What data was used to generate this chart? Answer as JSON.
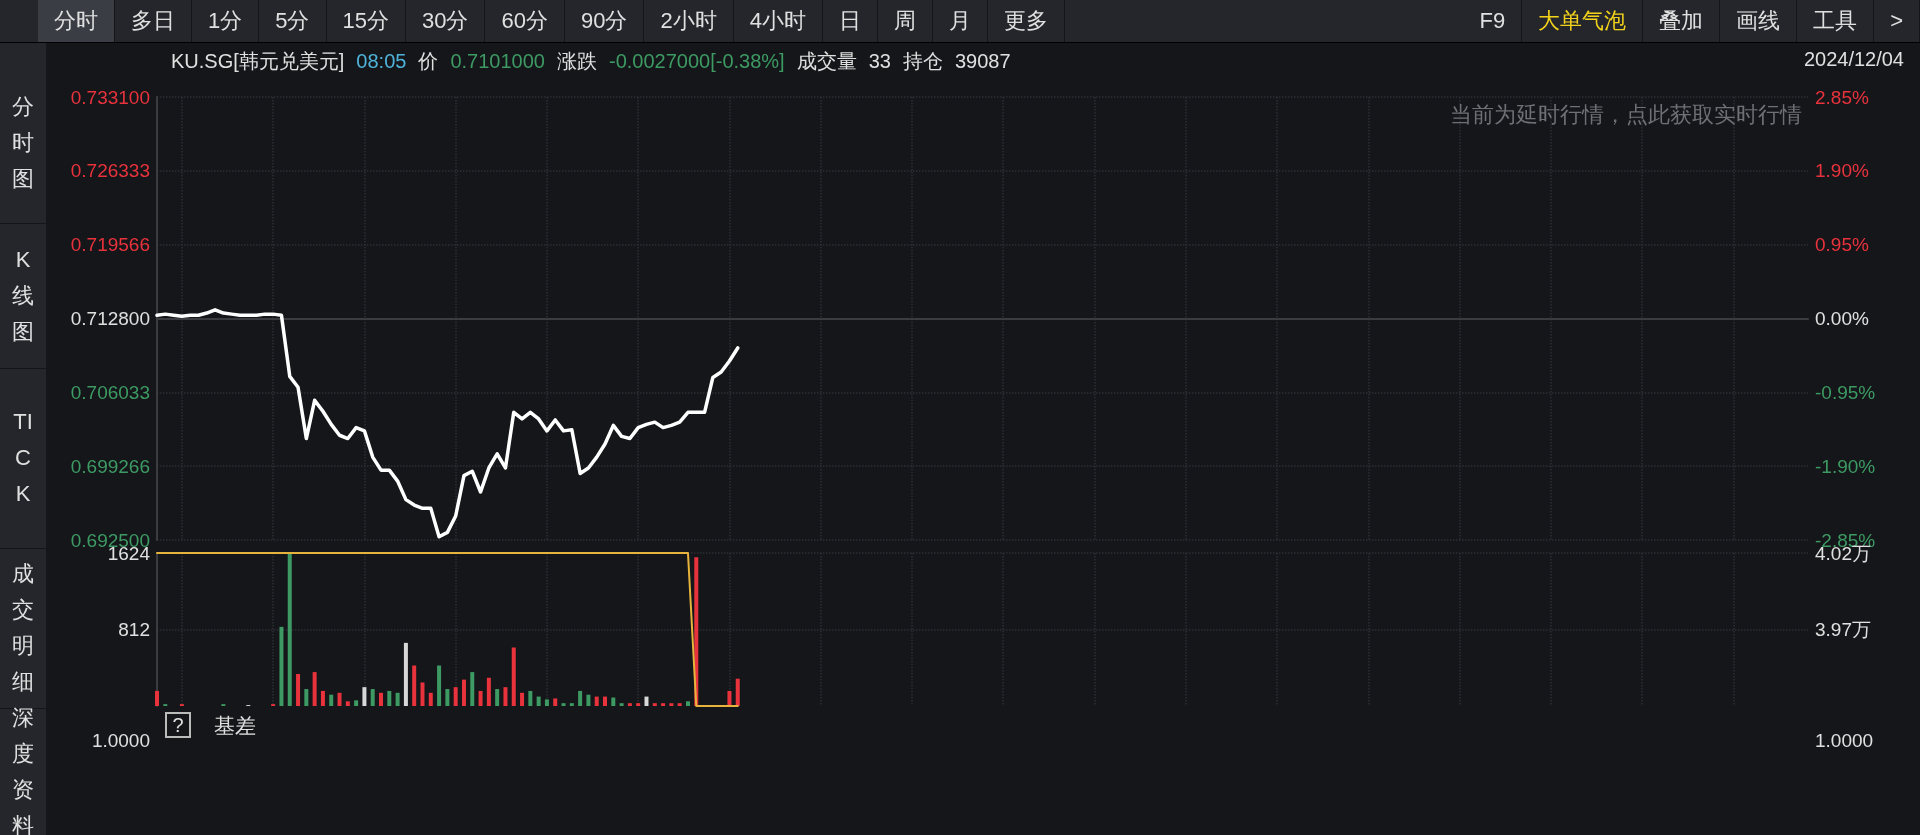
{
  "chart_data": [
    {
      "type": "line",
      "categories": [
        null,
        null,
        null,
        null,
        null,
        null,
        null,
        null,
        null,
        null,
        null,
        null,
        null,
        null,
        null,
        null,
        null,
        null,
        null,
        null,
        null,
        null,
        null,
        null,
        null,
        null,
        null,
        null,
        null,
        null,
        null,
        null,
        null,
        null,
        null,
        null,
        null,
        null,
        null,
        null,
        null,
        null,
        null,
        null,
        null,
        null,
        null,
        null,
        null,
        null,
        null,
        null,
        null,
        null,
        null,
        null,
        null,
        null,
        null,
        null,
        null,
        null,
        null,
        null,
        null,
        null,
        null,
        null,
        null,
        null,
        null,
        null,
        null,
        null,
        null,
        null,
        null,
        null,
        null,
        null,
        null,
        null,
        null,
        null,
        null,
        null,
        null,
        null,
        null,
        null,
        null,
        null,
        null,
        null,
        null,
        null,
        null,
        null,
        null,
        null,
        null,
        null,
        null,
        null,
        null,
        null,
        null,
        null,
        null,
        null,
        null,
        null,
        null,
        null,
        null,
        null,
        null,
        null,
        null,
        null,
        null,
        null,
        null,
        null,
        null,
        null,
        null,
        null,
        null,
        null,
        null,
        null,
        null,
        null,
        null,
        null,
        null,
        null,
        null,
        null,
        null,
        null,
        null,
        null,
        null,
        null,
        null,
        null,
        null,
        null,
        null,
        null,
        null,
        null,
        null,
        null,
        null,
        null,
        null,
        null,
        null,
        null,
        null,
        null,
        null,
        null,
        null,
        null,
        null,
        null,
        null,
        null,
        null,
        null,
        null,
        null,
        null,
        null,
        null,
        null,
        null,
        null,
        null,
        null,
        null,
        null,
        null,
        null,
        null,
        null,
        null,
        null,
        null,
        null,
        null,
        null,
        null,
        null,
        null,
        null
      ],
      "series": [
        {
          "color": "#ffffff",
          "values": [
            0.7131,
            0.7132,
            0.7131,
            0.713,
            0.7131,
            0.7131,
            0.7133,
            0.7136,
            0.7133,
            0.7132,
            0.7131,
            0.7131,
            0.7131,
            0.7132,
            0.7132,
            0.7131,
            0.7075,
            0.7065,
            0.7018,
            0.7053,
            0.7043,
            0.7031,
            0.7021,
            0.7018,
            0.7028,
            0.7025,
            0.7001,
            0.6989,
            0.6989,
            0.6979,
            0.6962,
            0.6957,
            0.6954,
            0.6954,
            0.6928,
            0.6932,
            0.6947,
            0.6984,
            0.6988,
            0.6969,
            0.6991,
            0.7004,
            0.6991,
            0.7042,
            0.7036,
            0.7042,
            0.7036,
            0.7025,
            0.7035,
            0.7025,
            0.7026,
            0.6986,
            0.6991,
            0.7001,
            0.7013,
            0.703,
            0.702,
            0.7018,
            0.7028,
            0.7031,
            0.7033,
            0.7028,
            0.703,
            0.7033,
            0.7042,
            0.7042,
            0.7042,
            0.7074,
            0.7079,
            0.7089,
            0.7101,
            null,
            null,
            null,
            null,
            null,
            null,
            null,
            null,
            null,
            null,
            null,
            null,
            null,
            null,
            null,
            null,
            null,
            null,
            null,
            null,
            null,
            null,
            null,
            null,
            null,
            null,
            null,
            null,
            null,
            null,
            null,
            null,
            null,
            null,
            null,
            null,
            null,
            null,
            null,
            null,
            null,
            null,
            null,
            null,
            null,
            null,
            null,
            null,
            null,
            null,
            null,
            null,
            null,
            null,
            null,
            null,
            null,
            null,
            null,
            null,
            null,
            null,
            null,
            null,
            null,
            null,
            null,
            null,
            null,
            null,
            null,
            null,
            null,
            null,
            null,
            null,
            null,
            null,
            null,
            null,
            null,
            null,
            null,
            null,
            null,
            null,
            null,
            null,
            null,
            null,
            null,
            null,
            null,
            null,
            null,
            null,
            null,
            null,
            null,
            null,
            null,
            null,
            null,
            null,
            null,
            null,
            null,
            null,
            null,
            null,
            null,
            null,
            null,
            null,
            null,
            null,
            null,
            null,
            null,
            null,
            null,
            null,
            null,
            null,
            null,
            null,
            null,
            null,
            null
          ]
        }
      ],
      "ylim": [
        0.6925,
        0.7331
      ],
      "yticks": [
        {
          "value": 0.6925,
          "label": "0.692500"
        },
        {
          "value": 0.699266,
          "label": "0.699266"
        },
        {
          "value": 0.706033,
          "label": "0.706033"
        },
        {
          "value": 0.7128,
          "label": "0.712800"
        },
        {
          "value": 0.719566,
          "label": "0.719566"
        },
        {
          "value": 0.726333,
          "label": "0.726333"
        },
        {
          "value": 0.7331,
          "label": "0.733100"
        }
      ],
      "y2lim": [
        -2.85,
        2.85
      ],
      "y2ticks": [
        {
          "value": -2.85,
          "label": "-2.85%"
        },
        {
          "value": -1.9,
          "label": "-1.90%"
        },
        {
          "value": -0.95,
          "label": "-0.95%"
        },
        {
          "value": 0,
          "label": "0.00%"
        },
        {
          "value": 0.95,
          "label": "0.95%"
        },
        {
          "value": 1.9,
          "label": "1.90%"
        },
        {
          "value": 2.85,
          "label": "2.85%"
        }
      ],
      "ref_lines": [
        {
          "axis": "y",
          "value": 0.7128,
          "label": null,
          "color": "#3a3c40"
        }
      ],
      "grid": true,
      "line_style": "solid",
      "annotations": [
        "KU.SG[韩元兑美元]",
        "08:05",
        "价",
        "0.7101000",
        "涨跌",
        "-0.0027000[-0.38%]",
        "成交量",
        "33",
        "持仓",
        "39087",
        "2024/12/04",
        "当前为延时行情，点此获取实时行情"
      ]
    },
    {
      "type": "bar",
      "categories": [
        null,
        null,
        null,
        null,
        null,
        null,
        null,
        null,
        null,
        null,
        null,
        null,
        null,
        null,
        null,
        null,
        null,
        null,
        null,
        null,
        null,
        null,
        null,
        null,
        null,
        null,
        null,
        null,
        null,
        null,
        null,
        null,
        null,
        null,
        null,
        null,
        null,
        null,
        null,
        null,
        null,
        null,
        null,
        null,
        null,
        null,
        null,
        null,
        null,
        null,
        null,
        null,
        null,
        null,
        null,
        null,
        null,
        null,
        null,
        null,
        null,
        null,
        null,
        null,
        null,
        null,
        null,
        null,
        null,
        null,
        null,
        null,
        null,
        null,
        null,
        null,
        null,
        null,
        null,
        null,
        null,
        null,
        null,
        null,
        null,
        null,
        null,
        null,
        null,
        null,
        null,
        null,
        null,
        null,
        null,
        null,
        null,
        null,
        null,
        null,
        null,
        null,
        null,
        null,
        null,
        null,
        null,
        null,
        null,
        null,
        null,
        null,
        null,
        null,
        null,
        null,
        null,
        null,
        null,
        null,
        null,
        null,
        null,
        null,
        null,
        null,
        null,
        null,
        null,
        null,
        null,
        null,
        null,
        null,
        null,
        null,
        null,
        null,
        null,
        null,
        null,
        null,
        null,
        null,
        null,
        null,
        null,
        null,
        null,
        null,
        null,
        null,
        null,
        null,
        null,
        null,
        null,
        null,
        null,
        null,
        null,
        null,
        null,
        null,
        null,
        null,
        null,
        null,
        null,
        null,
        null,
        null,
        null,
        null,
        null,
        null,
        null,
        null,
        null,
        null,
        null,
        null,
        null,
        null,
        null,
        null,
        null,
        null,
        null,
        null,
        null,
        null,
        null,
        null,
        null,
        null,
        null,
        null,
        null,
        null
      ],
      "series": [
        {
          "type": "bar",
          "values": [
            160,
            20,
            0,
            20,
            0,
            0,
            0,
            0,
            20,
            0,
            0,
            10,
            0,
            0,
            20,
            840,
            1624,
            340,
            180,
            360,
            160,
            120,
            140,
            50,
            60,
            200,
            180,
            140,
            160,
            140,
            670,
            430,
            250,
            140,
            430,
            180,
            200,
            280,
            360,
            160,
            300,
            180,
            200,
            620,
            140,
            160,
            100,
            70,
            80,
            30,
            30,
            160,
            120,
            100,
            100,
            90,
            30,
            30,
            30,
            100,
            30,
            30,
            30,
            30,
            50,
            1580,
            null,
            null,
            null,
            160,
            290,
            null,
            null,
            null,
            null,
            null,
            null,
            null,
            null,
            null,
            null,
            null,
            null,
            null,
            null,
            null,
            null,
            null,
            null,
            null,
            null,
            null,
            null,
            null,
            null,
            null,
            null,
            null,
            null,
            null,
            null,
            null,
            null,
            null,
            null,
            null,
            null,
            null,
            null,
            null,
            null,
            null,
            null,
            null,
            null,
            null,
            null,
            null,
            null,
            null,
            null,
            null,
            null,
            null,
            null,
            null,
            null,
            null,
            null,
            null,
            null,
            null,
            null,
            null,
            null,
            null,
            null,
            null,
            null,
            null,
            null,
            null,
            null,
            null,
            null,
            null,
            null,
            null,
            null,
            null,
            null,
            null,
            null,
            null,
            null,
            null,
            null,
            null,
            null,
            null,
            null,
            null,
            null,
            null,
            null,
            null,
            null,
            null,
            null,
            null,
            null,
            null,
            null,
            null,
            null,
            null,
            null,
            null,
            null,
            null,
            null,
            null,
            null,
            null,
            null,
            null,
            null,
            null,
            null,
            null,
            null,
            null,
            null,
            null,
            null,
            null,
            null,
            null,
            null,
            null
          ],
          "colors": [
            "#e8323c",
            "#3d9a63",
            "#3d9a63",
            "#e8323c",
            "#e8323c",
            "#e8323c",
            "#e8323c",
            "#e8323c",
            "#3d9a63",
            "#3d9a63",
            "#3d9a63",
            "#d8d8d8",
            "#3d9a63",
            "#3d9a63",
            "#e8323c",
            "#3d9a63",
            "#3d9a63",
            "#e8323c",
            "#3d9a63",
            "#e8323c",
            "#e8323c",
            "#3d9a63",
            "#e8323c",
            "#e8323c",
            "#3d9a63",
            "#d8d8d8",
            "#3d9a63",
            "#e8323c",
            "#3d9a63",
            "#3d9a63",
            "#d8d8d8",
            "#e8323c",
            "#e8323c",
            "#e8323c",
            "#3d9a63",
            "#3d9a63",
            "#e8323c",
            "#e8323c",
            "#3d9a63",
            "#e8323c",
            "#e8323c",
            "#3d9a63",
            "#e8323c",
            "#e8323c",
            "#e8323c",
            "#3d9a63",
            "#3d9a63",
            "#3d9a63",
            "#e8323c",
            "#3d9a63",
            "#3d9a63",
            "#3d9a63",
            "#3d9a63",
            "#e8323c",
            "#e8323c",
            "#3d9a63",
            "#3d9a63",
            "#e8323c",
            "#e8323c",
            "#d8d8d8",
            "#e8323c",
            "#e8323c",
            "#e8323c",
            "#e8323c",
            "#3d9a63",
            "#e8323c",
            "#e8323c",
            "#3d9a63",
            "#e8323c",
            "#e8323c",
            "#e8323c",
            null,
            null,
            null,
            null,
            null,
            null,
            null,
            null,
            null,
            null,
            null,
            null,
            null,
            null,
            null,
            null,
            null,
            null,
            null,
            null,
            null,
            null,
            null,
            null,
            null,
            null,
            null,
            null,
            null,
            null,
            null,
            null,
            null,
            null,
            null,
            null,
            null,
            null,
            null,
            null,
            null,
            null,
            null,
            null,
            null,
            null,
            null,
            null,
            null,
            null,
            null,
            null,
            null,
            null,
            null,
            null,
            null,
            null,
            null,
            null,
            null,
            null,
            null,
            null,
            null,
            null,
            null,
            null,
            null,
            null,
            null,
            null,
            null,
            null,
            null,
            null,
            null,
            null,
            null,
            null,
            null,
            null,
            null,
            null,
            null,
            null,
            null,
            null,
            null,
            null,
            null,
            null,
            null,
            null,
            null,
            null,
            null,
            null,
            null,
            null,
            null,
            null,
            null,
            null,
            null,
            null,
            null,
            null,
            null,
            null,
            null,
            null,
            null,
            null,
            null,
            null,
            null,
            null,
            null,
            null,
            null,
            null,
            null,
            null,
            null,
            null,
            null,
            null,
            null
          ]
        },
        {
          "type": "line",
          "axis": "y2",
          "color": "#e6b43c",
          "values": [
            4.02,
            4.02,
            4.02,
            4.02,
            4.02,
            4.02,
            4.02,
            4.02,
            4.02,
            4.02,
            4.02,
            4.02,
            4.02,
            4.02,
            4.02,
            4.02,
            4.02,
            4.02,
            4.02,
            4.02,
            4.02,
            4.02,
            4.02,
            4.02,
            4.02,
            4.02,
            4.02,
            4.02,
            4.02,
            4.02,
            4.02,
            4.02,
            4.02,
            4.02,
            4.02,
            4.02,
            4.02,
            4.02,
            4.02,
            4.02,
            4.02,
            4.02,
            4.02,
            4.02,
            4.02,
            4.02,
            4.02,
            4.02,
            4.02,
            4.02,
            4.02,
            4.02,
            4.02,
            4.02,
            4.02,
            4.02,
            4.02,
            4.02,
            4.02,
            4.02,
            4.02,
            4.02,
            4.02,
            4.02,
            4.02,
            3.92,
            3.92,
            3.92,
            3.92,
            3.92,
            3.92,
            null,
            null,
            null,
            null,
            null,
            null,
            null,
            null,
            null,
            null,
            null,
            null,
            null,
            null,
            null,
            null,
            null,
            null,
            null,
            null,
            null,
            null,
            null,
            null,
            null,
            null,
            null,
            null,
            null,
            null,
            null,
            null,
            null,
            null,
            null,
            null,
            null,
            null,
            null,
            null,
            null,
            null,
            null,
            null,
            null,
            null,
            null,
            null,
            null,
            null,
            null,
            null,
            null,
            null,
            null,
            null,
            null,
            null,
            null,
            null,
            null,
            null,
            null,
            null,
            null,
            null,
            null,
            null,
            null,
            null,
            null,
            null,
            null,
            null,
            null,
            null,
            null,
            null,
            null,
            null,
            null,
            null,
            null,
            null,
            null,
            null,
            null,
            null,
            null,
            null,
            null,
            null,
            null,
            null,
            null,
            null,
            null,
            null,
            null,
            null,
            null,
            null,
            null,
            null,
            null,
            null,
            null,
            null,
            null,
            null,
            null,
            null,
            null,
            null,
            null,
            null,
            null,
            null,
            null,
            null,
            null,
            null,
            null,
            null,
            null,
            null,
            null,
            null,
            null
          ]
        }
      ],
      "ylim": [
        0,
        1624
      ],
      "yticks": [
        812,
        1624
      ],
      "y2lim": [
        3.92,
        4.02
      ],
      "y2ticks": [
        {
          "value": 3.97,
          "label": "3.97万"
        },
        {
          "value": 4.02,
          "label": "4.02万"
        }
      ],
      "grid": true
    },
    {
      "type": "other",
      "title": "基差",
      "annotations": [
        "?",
        "1.0000",
        "1.0000"
      ]
    },
    {
      "type": "other",
      "annotations": [
        "分时",
        "多日",
        "1分",
        "5分",
        "15分",
        "30分",
        "60分",
        "90分",
        "2小时",
        "4小时",
        "日",
        "周",
        "月",
        "更多"
      ]
    },
    {
      "type": "other",
      "annotations": [
        "F9",
        "大单气泡",
        "叠加",
        "画线",
        "工具",
        ">"
      ]
    },
    {
      "type": "other",
      "annotations": [
        "分时图",
        "K线图",
        "TICK",
        "成交明细",
        "深度资料"
      ]
    }
  ]
}
